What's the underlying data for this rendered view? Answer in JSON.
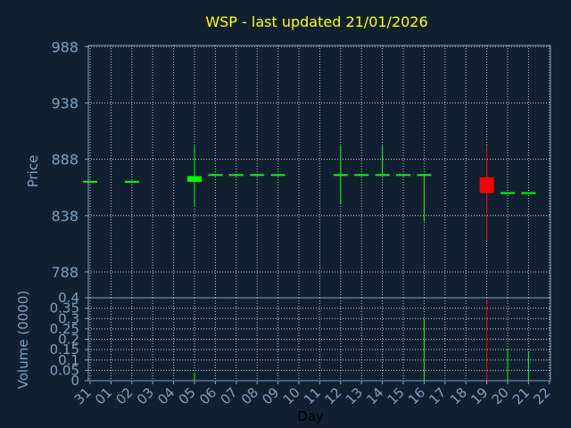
{
  "chart_data": {
    "type": "candlestick",
    "title": "WSP - last updated 21/01/2026",
    "colors": {
      "background": "#112031",
      "title": "#ffff00",
      "frame": "#7f9fbf",
      "axis_text": "#7f9fbf",
      "grid": "#ffffff",
      "up": "#00ff00",
      "down": "#ff0000"
    },
    "grid": true,
    "price_panel": {
      "ylabel": "Price",
      "yticks": [
        788,
        838,
        888,
        938,
        988
      ],
      "ylim": [
        765,
        989
      ]
    },
    "volume_panel": {
      "ylabel": "Volume (0000)",
      "yticks": [
        "0",
        "0.05",
        "0.1",
        "0.15",
        "0.2",
        "0.25",
        "0.3",
        "0.35",
        "0.4"
      ],
      "ylim": [
        0,
        0.4
      ]
    },
    "xlabel": "Day",
    "x_ticks": [
      "31",
      "01",
      "02",
      "03",
      "04",
      "05",
      "06",
      "07",
      "08",
      "09",
      "10",
      "11",
      "12",
      "13",
      "14",
      "15",
      "16",
      "17",
      "18",
      "19",
      "20",
      "21",
      "22"
    ],
    "candles": [
      {
        "x": 0,
        "open": 868,
        "high": 868,
        "low": 868,
        "close": 868,
        "volume": 0
      },
      {
        "x": 2,
        "open": 868,
        "high": 868,
        "low": 868,
        "close": 868,
        "volume": 0
      },
      {
        "x": 5,
        "open": 868,
        "high": 900,
        "low": 846,
        "close": 873,
        "volume": 0.04
      },
      {
        "x": 6,
        "open": 874,
        "high": 874,
        "low": 874,
        "close": 874,
        "volume": 0
      },
      {
        "x": 7,
        "open": 874,
        "high": 874,
        "low": 874,
        "close": 874,
        "volume": 0
      },
      {
        "x": 8,
        "open": 874,
        "high": 874,
        "low": 874,
        "close": 874,
        "volume": 0
      },
      {
        "x": 9,
        "open": 874,
        "high": 874,
        "low": 874,
        "close": 874,
        "volume": 0
      },
      {
        "x": 12,
        "open": 874,
        "high": 900,
        "low": 848,
        "close": 874,
        "volume": 0
      },
      {
        "x": 13,
        "open": 874,
        "high": 874,
        "low": 874,
        "close": 874,
        "volume": 0
      },
      {
        "x": 14,
        "open": 874,
        "high": 900,
        "low": 874,
        "close": 874,
        "volume": 0
      },
      {
        "x": 15,
        "open": 874,
        "high": 874,
        "low": 874,
        "close": 874,
        "volume": 0
      },
      {
        "x": 16,
        "open": 874,
        "high": 874,
        "low": 833,
        "close": 874,
        "volume": 0.3
      },
      {
        "x": 19,
        "open": 872,
        "high": 900,
        "low": 816,
        "close": 858,
        "volume": 0.38
      },
      {
        "x": 20,
        "open": 858,
        "high": 858,
        "low": 858,
        "close": 858,
        "volume": 0.15
      },
      {
        "x": 21,
        "open": 858,
        "high": 858,
        "low": 858,
        "close": 858,
        "volume": 0.14
      }
    ]
  }
}
